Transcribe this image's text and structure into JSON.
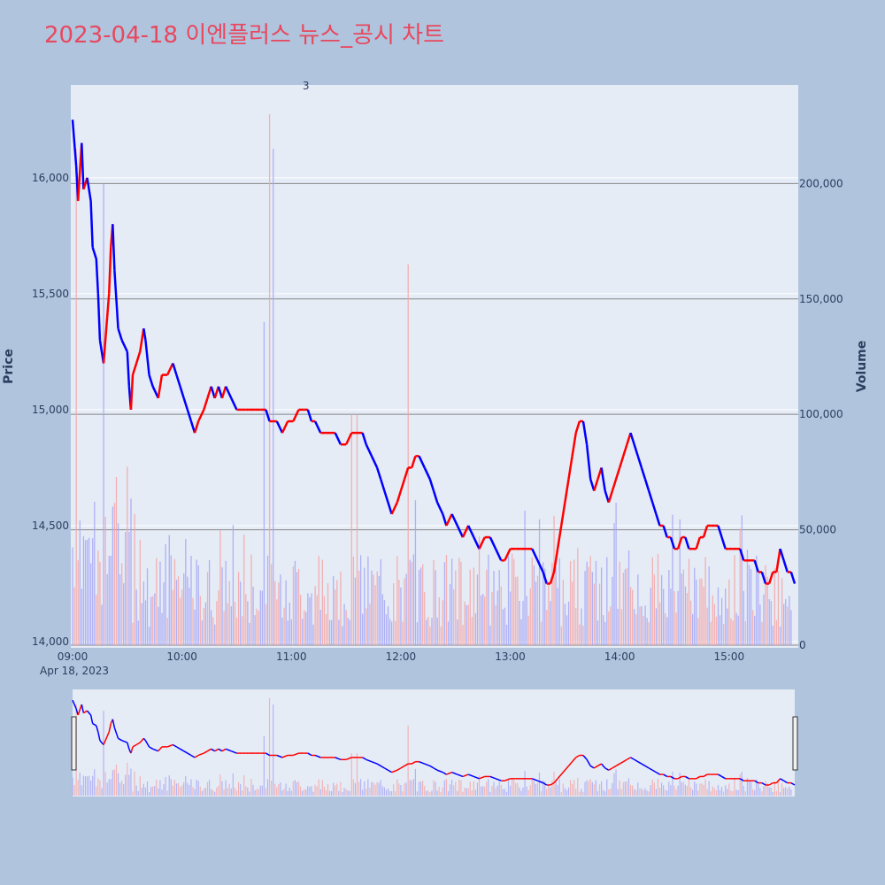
{
  "chart_data": {
    "type": "candlestick",
    "title": "2023-04-18 이엔플러스 뉴스_공시 차트",
    "ylabel_price": "Price",
    "ylabel_volume": "Volume",
    "x_date_label": "Apr 18, 2023",
    "x_ticks": [
      "09:00",
      "10:00",
      "11:00",
      "12:00",
      "13:00",
      "14:00",
      "15:00"
    ],
    "price_axis": {
      "range": [
        14000,
        16400
      ],
      "ticks": [
        14000,
        14500,
        15000,
        15500,
        16000
      ],
      "tick_labels": [
        "14,000",
        "14,500",
        "15,000",
        "15,500",
        "16,000"
      ]
    },
    "volume_axis": {
      "range": [
        0,
        240000
      ],
      "ticks": [
        0,
        50000,
        100000,
        150000,
        200000
      ],
      "tick_labels": [
        "0",
        "50,000",
        "100,000",
        "150,000",
        "200,000"
      ]
    },
    "time_range_minutes": [
      0,
      396
    ],
    "annotations": [
      {
        "text": "3",
        "time_minutes": 128
      }
    ],
    "price_path": [
      [
        0,
        16250
      ],
      [
        2,
        16050
      ],
      [
        3,
        15900
      ],
      [
        5,
        16150
      ],
      [
        6,
        15950
      ],
      [
        8,
        16000
      ],
      [
        10,
        15900
      ],
      [
        11,
        15700
      ],
      [
        13,
        15650
      ],
      [
        14,
        15500
      ],
      [
        15,
        15300
      ],
      [
        17,
        15200
      ],
      [
        19,
        15400
      ],
      [
        20,
        15500
      ],
      [
        21,
        15700
      ],
      [
        22,
        15800
      ],
      [
        23,
        15600
      ],
      [
        25,
        15350
      ],
      [
        27,
        15300
      ],
      [
        30,
        15250
      ],
      [
        31,
        15100
      ],
      [
        32,
        15000
      ],
      [
        33,
        15150
      ],
      [
        35,
        15200
      ],
      [
        37,
        15250
      ],
      [
        39,
        15350
      ],
      [
        40,
        15300
      ],
      [
        42,
        15150
      ],
      [
        44,
        15100
      ],
      [
        47,
        15050
      ],
      [
        49,
        15150
      ],
      [
        52,
        15150
      ],
      [
        55,
        15200
      ],
      [
        57,
        15150
      ],
      [
        59,
        15100
      ],
      [
        61,
        15050
      ],
      [
        63,
        15000
      ],
      [
        65,
        14950
      ],
      [
        67,
        14900
      ],
      [
        69,
        14950
      ],
      [
        72,
        15000
      ],
      [
        74,
        15050
      ],
      [
        76,
        15100
      ],
      [
        78,
        15050
      ],
      [
        80,
        15100
      ],
      [
        82,
        15050
      ],
      [
        84,
        15100
      ],
      [
        87,
        15050
      ],
      [
        90,
        15000
      ],
      [
        93,
        15000
      ],
      [
        95,
        15000
      ],
      [
        97,
        15000
      ],
      [
        100,
        15000
      ],
      [
        103,
        15000
      ],
      [
        106,
        15000
      ],
      [
        108,
        14950
      ],
      [
        110,
        14950
      ],
      [
        112,
        14950
      ],
      [
        115,
        14900
      ],
      [
        118,
        14950
      ],
      [
        121,
        14950
      ],
      [
        124,
        15000
      ],
      [
        127,
        15000
      ],
      [
        129,
        15000
      ],
      [
        131,
        14950
      ],
      [
        133,
        14950
      ],
      [
        136,
        14900
      ],
      [
        139,
        14900
      ],
      [
        141,
        14900
      ],
      [
        144,
        14900
      ],
      [
        147,
        14850
      ],
      [
        150,
        14850
      ],
      [
        153,
        14900
      ],
      [
        156,
        14900
      ],
      [
        159,
        14900
      ],
      [
        161,
        14850
      ],
      [
        164,
        14800
      ],
      [
        167,
        14750
      ],
      [
        169,
        14700
      ],
      [
        171,
        14650
      ],
      [
        173,
        14600
      ],
      [
        175,
        14550
      ],
      [
        178,
        14600
      ],
      [
        180,
        14650
      ],
      [
        182,
        14700
      ],
      [
        184,
        14750
      ],
      [
        186,
        14750
      ],
      [
        188,
        14800
      ],
      [
        190,
        14800
      ],
      [
        193,
        14750
      ],
      [
        196,
        14700
      ],
      [
        198,
        14650
      ],
      [
        200,
        14600
      ],
      [
        203,
        14550
      ],
      [
        205,
        14500
      ],
      [
        208,
        14550
      ],
      [
        211,
        14500
      ],
      [
        214,
        14450
      ],
      [
        217,
        14500
      ],
      [
        220,
        14450
      ],
      [
        223,
        14400
      ],
      [
        226,
        14450
      ],
      [
        229,
        14450
      ],
      [
        232,
        14400
      ],
      [
        235,
        14350
      ],
      [
        237,
        14350
      ],
      [
        240,
        14400
      ],
      [
        243,
        14400
      ],
      [
        246,
        14400
      ],
      [
        249,
        14400
      ],
      [
        252,
        14400
      ],
      [
        255,
        14350
      ],
      [
        258,
        14300
      ],
      [
        260,
        14250
      ],
      [
        262,
        14250
      ],
      [
        264,
        14300
      ],
      [
        266,
        14400
      ],
      [
        268,
        14500
      ],
      [
        270,
        14600
      ],
      [
        272,
        14700
      ],
      [
        274,
        14800
      ],
      [
        276,
        14900
      ],
      [
        278,
        14950
      ],
      [
        280,
        14950
      ],
      [
        282,
        14850
      ],
      [
        284,
        14700
      ],
      [
        286,
        14650
      ],
      [
        288,
        14700
      ],
      [
        290,
        14750
      ],
      [
        292,
        14650
      ],
      [
        294,
        14600
      ],
      [
        296,
        14650
      ],
      [
        298,
        14700
      ],
      [
        300,
        14750
      ],
      [
        302,
        14800
      ],
      [
        304,
        14850
      ],
      [
        306,
        14900
      ],
      [
        308,
        14850
      ],
      [
        310,
        14800
      ],
      [
        312,
        14750
      ],
      [
        314,
        14700
      ],
      [
        316,
        14650
      ],
      [
        318,
        14600
      ],
      [
        320,
        14550
      ],
      [
        322,
        14500
      ],
      [
        324,
        14500
      ],
      [
        326,
        14450
      ],
      [
        328,
        14450
      ],
      [
        330,
        14400
      ],
      [
        332,
        14400
      ],
      [
        334,
        14450
      ],
      [
        336,
        14450
      ],
      [
        338,
        14400
      ],
      [
        340,
        14400
      ],
      [
        342,
        14400
      ],
      [
        344,
        14450
      ],
      [
        346,
        14450
      ],
      [
        348,
        14500
      ],
      [
        350,
        14500
      ],
      [
        352,
        14500
      ],
      [
        354,
        14500
      ],
      [
        356,
        14450
      ],
      [
        358,
        14400
      ],
      [
        360,
        14400
      ],
      [
        362,
        14400
      ],
      [
        364,
        14400
      ],
      [
        366,
        14400
      ],
      [
        368,
        14350
      ],
      [
        370,
        14350
      ],
      [
        372,
        14350
      ],
      [
        374,
        14350
      ],
      [
        376,
        14300
      ],
      [
        378,
        14300
      ],
      [
        380,
        14250
      ],
      [
        382,
        14250
      ],
      [
        384,
        14300
      ],
      [
        386,
        14300
      ],
      [
        388,
        14400
      ],
      [
        390,
        14350
      ],
      [
        392,
        14300
      ],
      [
        394,
        14300
      ],
      [
        396,
        14250
      ]
    ]
  }
}
